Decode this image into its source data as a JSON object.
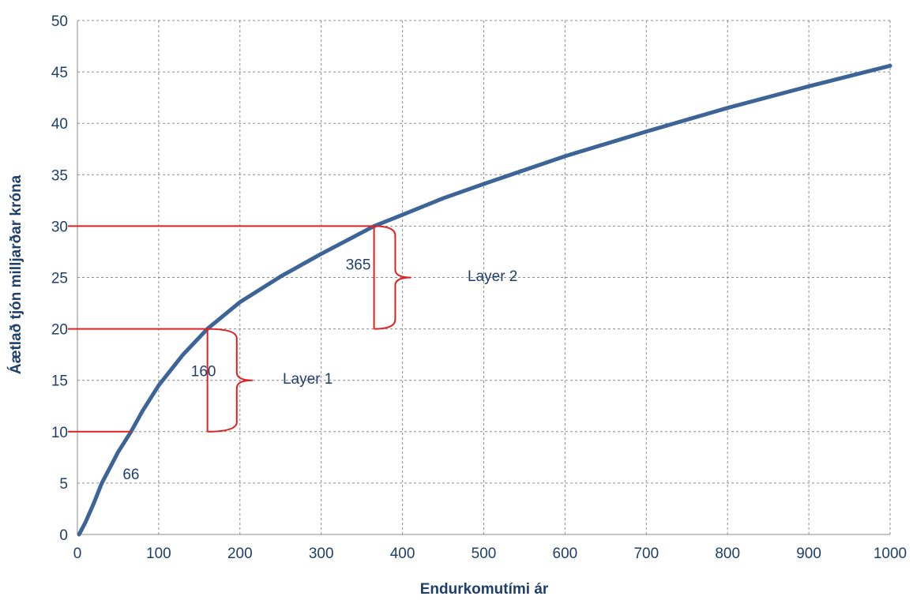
{
  "chart_data": {
    "type": "line",
    "xlabel": "Endurkomutími ár",
    "ylabel": "Áætlað tjón milljarðar króna",
    "xlim": [
      0,
      1000
    ],
    "ylim": [
      0,
      50
    ],
    "x_ticks": [
      0,
      100,
      200,
      300,
      400,
      500,
      600,
      700,
      800,
      900,
      1000
    ],
    "y_ticks": [
      0,
      5,
      10,
      15,
      20,
      25,
      30,
      35,
      40,
      45,
      50
    ],
    "grid": true,
    "series": [
      {
        "color": "#3d6497",
        "x": [
          2,
          10,
          20,
          30,
          40,
          50,
          66,
          80,
          100,
          130,
          160,
          200,
          250,
          300,
          365,
          400,
          450,
          500,
          600,
          700,
          800,
          900,
          1000
        ],
        "y": [
          0,
          1.2,
          3.0,
          5.0,
          6.5,
          8.0,
          10.0,
          12.0,
          14.5,
          17.5,
          20.0,
          22.6,
          25.1,
          27.3,
          30.0,
          31.1,
          32.7,
          34.1,
          36.8,
          39.2,
          41.5,
          43.6,
          45.6
        ]
      }
    ],
    "annotations": {
      "layer1_label": "Layer 1",
      "layer2_label": "Layer 2",
      "return_periods": [
        {
          "label": "66",
          "x": 66,
          "y": 10
        },
        {
          "label": "160",
          "x": 160,
          "y": 20
        },
        {
          "label": "365",
          "x": 365,
          "y": 30
        }
      ],
      "layers": [
        {
          "name": "Layer 1",
          "from": 10,
          "to": 20,
          "x": 160
        },
        {
          "name": "Layer 2",
          "from": 20,
          "to": 30,
          "x": 365
        }
      ],
      "annotation_color": "#e02020"
    }
  }
}
